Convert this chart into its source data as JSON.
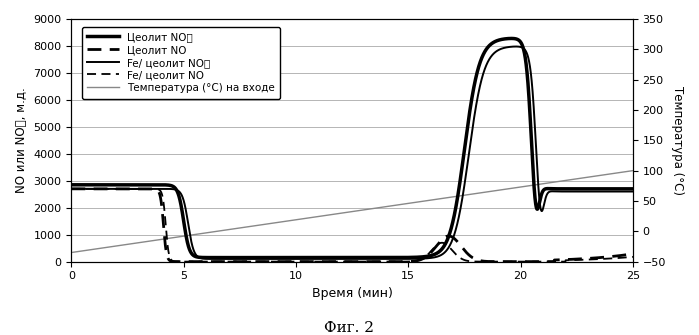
{
  "title": "",
  "xlabel": "Время (мин)",
  "ylabel_left": "NO или NO႓, м.д.",
  "ylabel_right": "Температура (°C)",
  "caption": "Фиг. 2",
  "xlim": [
    0,
    25
  ],
  "ylim_left": [
    0,
    9000
  ],
  "ylim_right": [
    -50,
    350
  ],
  "yticks_left": [
    0,
    1000,
    2000,
    3000,
    4000,
    5000,
    6000,
    7000,
    8000,
    9000
  ],
  "yticks_right": [
    -50,
    0,
    50,
    100,
    150,
    200,
    250,
    300,
    350
  ],
  "xticks": [
    0,
    5,
    10,
    15,
    20,
    25
  ],
  "legend_labels": [
    "Цеолит NO႓",
    "Цеолит NO",
    "Fe/ цеолит NO႓",
    "Fe/ цеолит NO",
    "Температура (°C) на входе"
  ],
  "background_color": "white"
}
